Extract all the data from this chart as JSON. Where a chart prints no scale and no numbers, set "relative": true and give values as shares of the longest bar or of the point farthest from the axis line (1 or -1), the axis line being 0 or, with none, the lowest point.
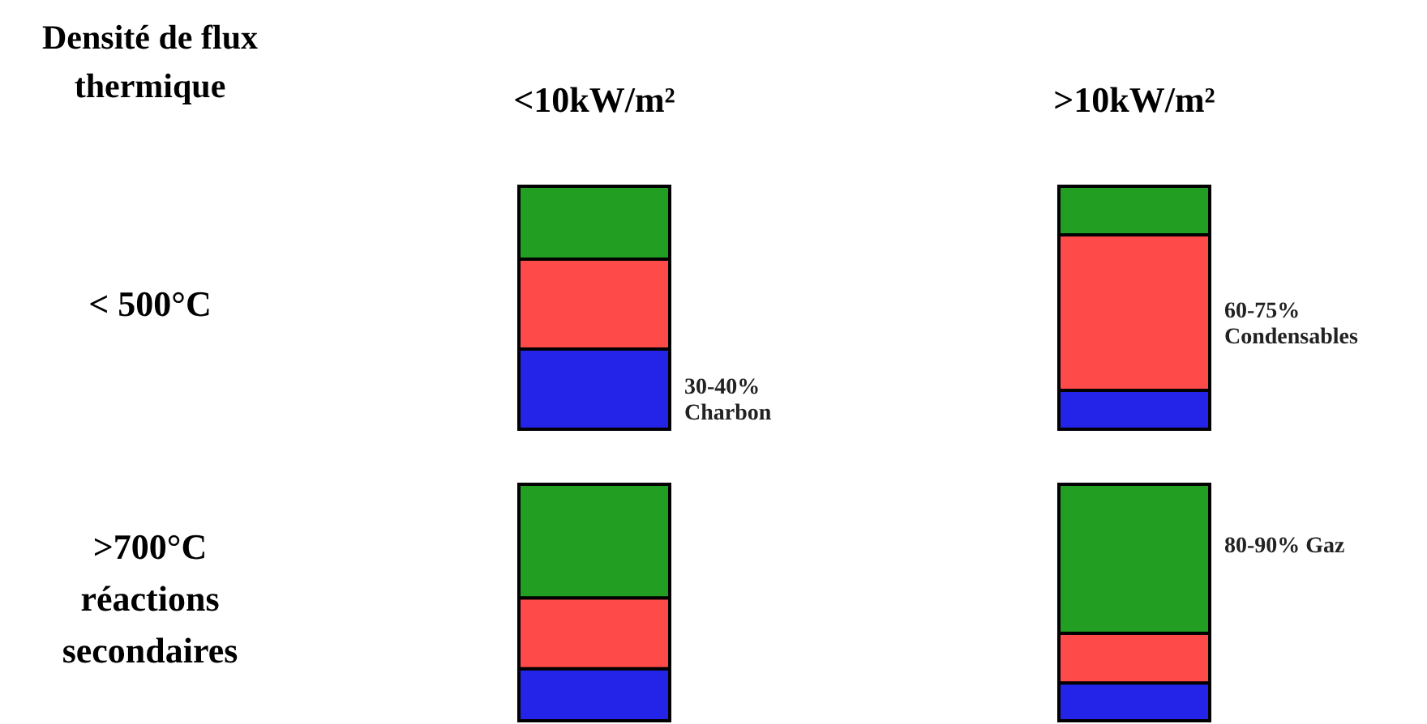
{
  "chart_data": [
    {
      "type": "other",
      "title": "Densité de flux thermique",
      "annotations": [
        "< 500°C",
        ">700°C\nréactions\nsecondaires"
      ]
    },
    {
      "type": "bar",
      "title": "<10kW/m²",
      "relative": true,
      "stacked": true,
      "categories": [
        null
      ],
      "annotations": [
        "30-40%\nCharbon"
      ],
      "series": [
        {
          "color": "#2424e8",
          "values": [
            0.33
          ]
        },
        {
          "color": "#ff4a4a",
          "values": [
            0.37
          ]
        },
        {
          "color": "#229e22",
          "values": [
            0.3
          ]
        }
      ]
    },
    {
      "type": "bar",
      "title": ">10kW/m²",
      "relative": true,
      "stacked": true,
      "categories": [
        null
      ],
      "annotations": [
        "60-75%\nCondensables"
      ],
      "series": [
        {
          "color": "#2424e8",
          "values": [
            0.16
          ]
        },
        {
          "color": "#ff4a4a",
          "values": [
            0.64
          ]
        },
        {
          "color": "#229e22",
          "values": [
            0.2
          ]
        }
      ]
    },
    {
      "type": "bar",
      "relative": true,
      "stacked": true,
      "categories": [
        null
      ],
      "series": [
        {
          "color": "#2424e8",
          "values": [
            0.22
          ]
        },
        {
          "color": "#ff4a4a",
          "values": [
            0.3
          ]
        },
        {
          "color": "#229e22",
          "values": [
            0.48
          ]
        }
      ]
    },
    {
      "type": "bar",
      "relative": true,
      "stacked": true,
      "categories": [
        null
      ],
      "annotations": [
        "80-90% Gaz"
      ],
      "series": [
        {
          "color": "#2424e8",
          "values": [
            0.16
          ]
        },
        {
          "color": "#ff4a4a",
          "values": [
            0.21
          ]
        },
        {
          "color": "#229e22",
          "values": [
            0.63
          ]
        }
      ]
    }
  ]
}
